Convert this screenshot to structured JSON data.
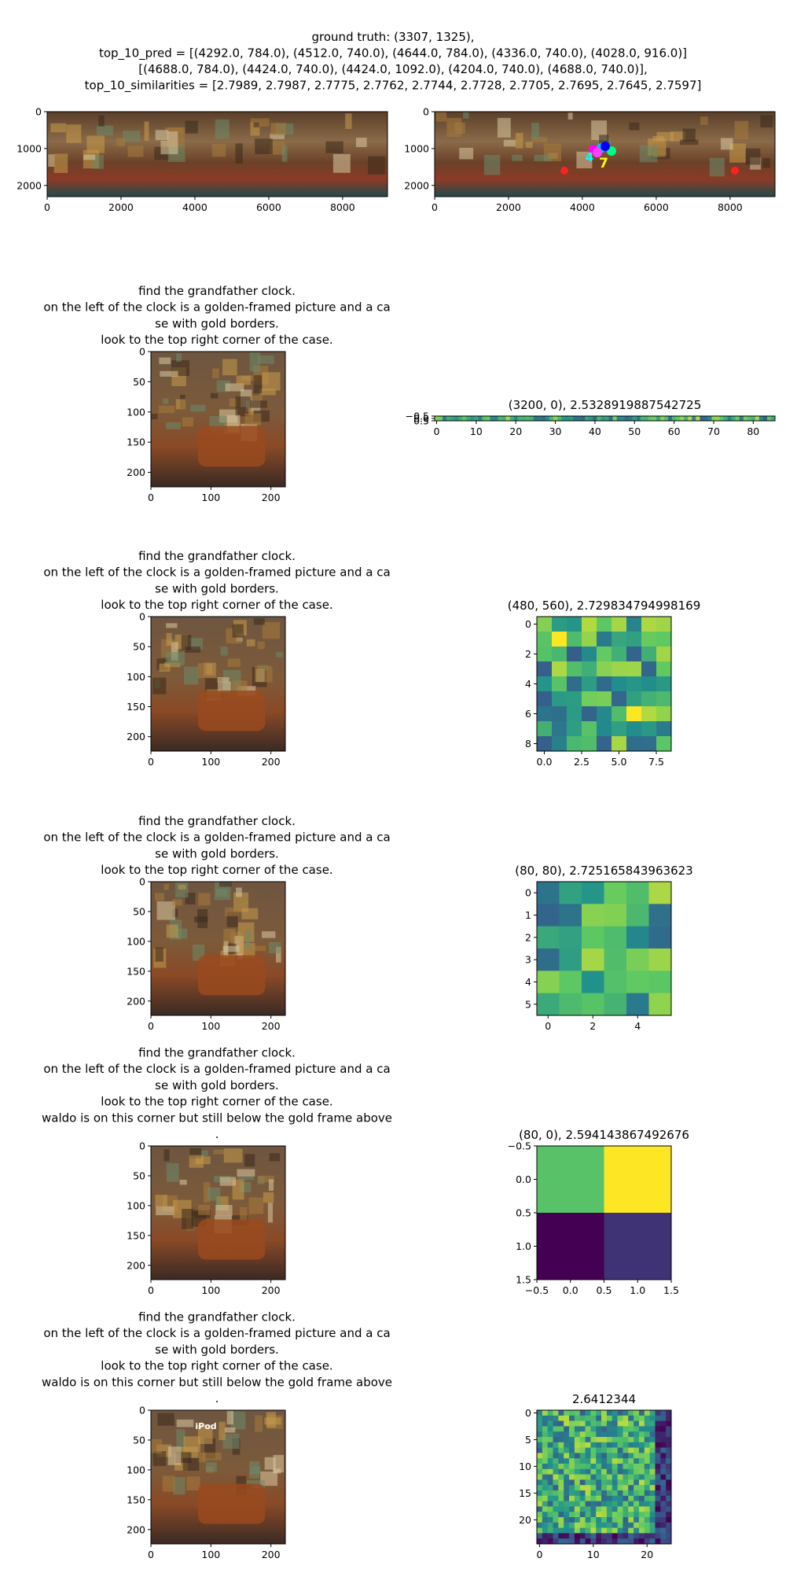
{
  "suptitle": [
    "ground truth: (3307, 1325),",
    "top_10_pred = [(4292.0, 784.0), (4512.0, 740.0), (4644.0, 784.0), (4336.0, 740.0), (4028.0, 916.0)]",
    "[(4688.0, 784.0), (4424.0, 740.0), (4424.0, 1092.0), (4204.0, 740.0), (4688.0, 740.0)],",
    "top_10_similarities = [2.7989, 2.7987, 2.7775, 2.7762, 2.7744, 2.7728, 2.7705, 2.7695, 2.7645, 2.7597]"
  ],
  "chart_data": [
    {
      "type": "image",
      "xlim": [
        0,
        9216
      ],
      "ylim": [
        2304,
        0
      ],
      "xticks": [
        0,
        2000,
        4000,
        6000,
        8000
      ],
      "yticks": [
        0,
        1000,
        2000
      ]
    },
    {
      "type": "image",
      "xlim": [
        0,
        9216
      ],
      "ylim": [
        2304,
        0
      ],
      "xticks": [
        0,
        2000,
        4000,
        6000,
        8000
      ],
      "yticks": [
        0,
        1000,
        2000
      ],
      "annotations": [
        "4",
        "7"
      ]
    },
    {
      "type": "image",
      "title_lines": [
        "find the grandfather clock.",
        "on the left of the clock is a golden-framed picture and a ca",
        "se with gold borders.",
        "look to the top right corner of the case."
      ],
      "xlim": [
        0,
        224
      ],
      "ylim": [
        224,
        0
      ],
      "xticks": [
        0,
        100,
        200
      ],
      "yticks": [
        0,
        50,
        100,
        150,
        200
      ]
    },
    {
      "type": "heatmap",
      "title": "(3200, 0), 2.5328919887542725",
      "xlim": [
        -0.5,
        85.5
      ],
      "ylim": [
        0.5,
        -0.5
      ],
      "xticks": [
        0,
        10,
        20,
        30,
        40,
        50,
        60,
        70,
        80
      ],
      "yticks": [
        {
          "value": -0.5,
          "label": "−0.5"
        },
        {
          "value": 0,
          "label": "0.0"
        },
        0.5
      ]
    },
    {
      "type": "image",
      "title_lines": [
        "find the grandfather clock.",
        "on the left of the clock is a golden-framed picture and a ca",
        "se with gold borders.",
        "look to the top right corner of the case."
      ],
      "xlim": [
        0,
        224
      ],
      "ylim": [
        224,
        0
      ],
      "xticks": [
        0,
        100,
        200
      ],
      "yticks": [
        0,
        50,
        100,
        150,
        200
      ]
    },
    {
      "type": "heatmap",
      "title": "(480, 560), 2.729834794998169",
      "xlim": [
        -0.5,
        8.5
      ],
      "ylim": [
        8.5,
        -0.5
      ],
      "xticks": [
        {
          "value": 0,
          "label": "0.0"
        },
        2.5,
        {
          "value": 5,
          "label": "5.0"
        },
        7.5
      ],
      "yticks": [
        0,
        2,
        4,
        6,
        8
      ]
    },
    {
      "type": "image",
      "title_lines": [
        "find the grandfather clock.",
        "on the left of the clock is a golden-framed picture and a ca",
        "se with gold borders.",
        "look to the top right corner of the case."
      ],
      "xlim": [
        0,
        224
      ],
      "ylim": [
        224,
        0
      ],
      "xticks": [
        0,
        100,
        200
      ],
      "yticks": [
        0,
        50,
        100,
        150,
        200
      ]
    },
    {
      "type": "heatmap",
      "title": "(80, 80), 2.725165843963623",
      "xlim": [
        -0.5,
        5.5
      ],
      "ylim": [
        5.5,
        -0.5
      ],
      "xticks": [
        0,
        2,
        4
      ],
      "yticks": [
        0,
        1,
        2,
        3,
        4,
        5
      ]
    },
    {
      "type": "image",
      "title_lines": [
        "find the grandfather clock.",
        "on the left of the clock is a golden-framed picture and a ca",
        "se with gold borders.",
        "look to the top right corner of the case.",
        "waldo is on this corner but still below the gold frame above",
        "."
      ],
      "xlim": [
        0,
        224
      ],
      "ylim": [
        224,
        0
      ],
      "xticks": [
        0,
        100,
        200
      ],
      "yticks": [
        0,
        50,
        100,
        150,
        200
      ]
    },
    {
      "type": "heatmap",
      "title": "(80, 0), 2.594143867492676",
      "xlim": [
        -0.5,
        1.5
      ],
      "ylim": [
        1.5,
        -0.5
      ],
      "xticks": [
        {
          "value": -0.5,
          "label": "−0.5"
        },
        {
          "value": 0,
          "label": "0.0"
        },
        0.5,
        {
          "value": 1,
          "label": "1.0"
        },
        1.5
      ],
      "yticks": [
        {
          "value": -0.5,
          "label": "−0.5"
        },
        {
          "value": 0,
          "label": "0.0"
        },
        0.5,
        {
          "value": 1,
          "label": "1.0"
        },
        1.5
      ]
    },
    {
      "type": "image",
      "title_lines": [
        "find the grandfather clock.",
        "on the left of the clock is a golden-framed picture and a ca",
        "se with gold borders.",
        "look to the top right corner of the case.",
        "waldo is on this corner but still below the gold frame above",
        "."
      ],
      "xlim": [
        0,
        224
      ],
      "ylim": [
        224,
        0
      ],
      "xticks": [
        0,
        100,
        200
      ],
      "yticks": [
        0,
        50,
        100,
        150,
        200
      ],
      "annotations": [
        "iPod"
      ]
    },
    {
      "type": "heatmap",
      "title": "2.6412344",
      "xlim": [
        -0.5,
        24.5
      ],
      "ylim": [
        24.5,
        -0.5
      ],
      "xticks": [
        0,
        10,
        20
      ],
      "yticks": [
        0,
        5,
        10,
        15,
        20
      ]
    }
  ]
}
